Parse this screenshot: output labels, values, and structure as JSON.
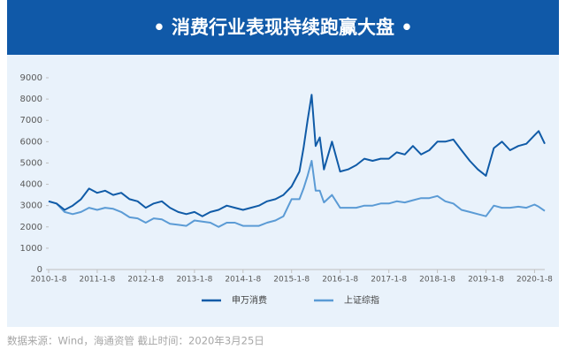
{
  "chart_data": {
    "type": "line",
    "title": "• 消费行业表现持续跑赢大盘 •",
    "source": "数据来源：Wind，海通资管   截止时间：2020年3月25日",
    "x": [
      "2010-1-8",
      "2010-3-8",
      "2010-5-8",
      "2010-7-8",
      "2010-9-8",
      "2010-11-8",
      "2011-1-8",
      "2011-3-8",
      "2011-5-8",
      "2011-7-8",
      "2011-9-8",
      "2011-11-8",
      "2012-1-8",
      "2012-3-8",
      "2012-5-8",
      "2012-7-8",
      "2012-9-8",
      "2012-11-8",
      "2013-1-8",
      "2013-3-8",
      "2013-5-8",
      "2013-7-8",
      "2013-9-8",
      "2013-11-8",
      "2014-1-8",
      "2014-3-8",
      "2014-5-8",
      "2014-7-8",
      "2014-9-8",
      "2014-11-8",
      "2015-1-8",
      "2015-3-8",
      "2015-4-8",
      "2015-5-8",
      "2015-6-8",
      "2015-7-8",
      "2015-8-8",
      "2015-9-8",
      "2015-11-8",
      "2016-1-8",
      "2016-3-8",
      "2016-5-8",
      "2016-7-8",
      "2016-9-8",
      "2016-11-8",
      "2017-1-8",
      "2017-3-8",
      "2017-5-8",
      "2017-7-8",
      "2017-9-8",
      "2017-11-8",
      "2018-1-8",
      "2018-3-8",
      "2018-5-8",
      "2018-7-8",
      "2018-9-8",
      "2018-11-8",
      "2019-1-8",
      "2019-3-8",
      "2019-5-8",
      "2019-7-8",
      "2019-9-8",
      "2019-11-8",
      "2020-1-8",
      "2020-2-8",
      "2020-3-25"
    ],
    "series": [
      {
        "name": "申万消费",
        "color": "#105ba7",
        "values": [
          3200,
          3100,
          2800,
          3000,
          3300,
          3800,
          3600,
          3700,
          3500,
          3600,
          3300,
          3200,
          2900,
          3100,
          3200,
          2900,
          2700,
          2600,
          2700,
          2500,
          2700,
          2800,
          3000,
          2900,
          2800,
          2900,
          3000,
          3200,
          3300,
          3500,
          3900,
          4600,
          5700,
          7000,
          8200,
          5800,
          6200,
          4700,
          6000,
          4600,
          4700,
          4900,
          5200,
          5100,
          5200,
          5200,
          5500,
          5400,
          5800,
          5400,
          5600,
          6000,
          6000,
          6100,
          5600,
          5100,
          4700,
          4400,
          5700,
          6000,
          5600,
          5800,
          5900,
          6300,
          6500,
          5900
        ]
      },
      {
        "name": "上证综指",
        "color": "#5b9bd5",
        "values": [
          3200,
          3100,
          2700,
          2600,
          2700,
          2900,
          2800,
          2900,
          2850,
          2700,
          2450,
          2400,
          2200,
          2400,
          2350,
          2150,
          2100,
          2050,
          2300,
          2250,
          2200,
          2000,
          2200,
          2200,
          2050,
          2050,
          2050,
          2200,
          2300,
          2500,
          3300,
          3300,
          3800,
          4400,
          5100,
          3700,
          3700,
          3150,
          3500,
          2900,
          2900,
          2900,
          3000,
          3000,
          3100,
          3100,
          3200,
          3150,
          3250,
          3350,
          3350,
          3450,
          3200,
          3100,
          2800,
          2700,
          2600,
          2500,
          3000,
          2900,
          2900,
          2950,
          2900,
          3050,
          2950,
          2750
        ]
      }
    ],
    "xlim": [
      "2010-1-8",
      "2020-3-25"
    ],
    "xticks": [
      "2010-1-8",
      "2011-1-8",
      "2012-1-8",
      "2013-1-8",
      "2014-1-8",
      "2015-1-8",
      "2016-1-8",
      "2017-1-8",
      "2018-1-8",
      "2019-1-8",
      "2020-1-8"
    ],
    "ylim": [
      0,
      9000
    ],
    "yticks": [
      0,
      1000,
      2000,
      3000,
      4000,
      5000,
      6000,
      7000,
      8000,
      9000
    ],
    "legend": "bottom"
  }
}
